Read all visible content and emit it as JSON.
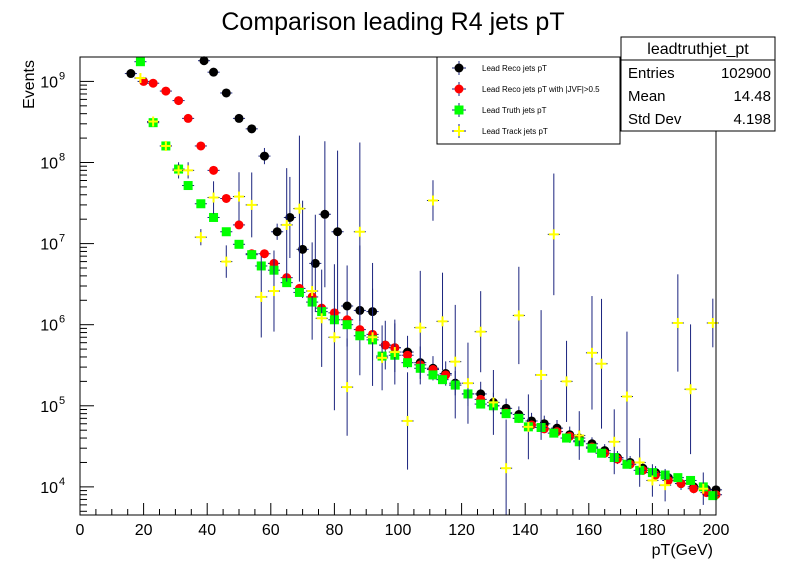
{
  "chart_data": {
    "type": "scatter",
    "title": "Comparison leading R4 jets pT",
    "xlabel": "pT(GeV)",
    "ylabel": "Events",
    "xlim": [
      0,
      200
    ],
    "ylim": [
      4500,
      2000000000
    ],
    "yscale": "log",
    "x_ticks": [
      0,
      20,
      40,
      60,
      80,
      100,
      120,
      140,
      160,
      180,
      200
    ],
    "y_ticks": [
      {
        "value": 10000,
        "mant": "10",
        "exp": "4"
      },
      {
        "value": 100000,
        "mant": "10",
        "exp": "5"
      },
      {
        "value": 1000000,
        "mant": "10",
        "exp": "6"
      },
      {
        "value": 10000000,
        "mant": "10",
        "exp": "7"
      },
      {
        "value": 100000000,
        "mant": "10",
        "exp": "8"
      },
      {
        "value": 1000000000,
        "mant": "10",
        "exp": "9"
      }
    ],
    "grid": false,
    "legend_position": "top-right",
    "series": [
      {
        "name": "Lead Reco jets pT",
        "color": "#000000",
        "marker": "circle",
        "points": [
          [
            16,
            1250000000,
            0
          ],
          [
            39,
            1800000000,
            0
          ],
          [
            42,
            1300000000,
            0
          ],
          [
            46,
            720000000,
            0
          ],
          [
            50,
            350000000,
            0
          ],
          [
            54,
            260000000,
            0
          ],
          [
            58,
            120000000,
            0.1
          ],
          [
            62,
            14000000,
            0.1
          ],
          [
            66,
            21000000,
            0.5
          ],
          [
            70,
            8500000,
            0.6
          ],
          [
            74,
            5700000,
            0.6
          ],
          [
            77,
            23000000,
            0.9
          ],
          [
            81,
            14000000,
            1.0
          ],
          [
            84,
            1700000,
            0.5
          ],
          [
            88,
            1500000,
            0.8
          ],
          [
            92,
            1450000,
            0.6
          ],
          [
            96,
            560000,
            0.3
          ],
          [
            99,
            520000,
            0.3
          ],
          [
            103,
            460000,
            0.2
          ],
          [
            107,
            340000,
            0.2
          ],
          [
            111,
            290000,
            0.15
          ],
          [
            115,
            250000,
            0.15
          ],
          [
            118,
            190000,
            0.15
          ],
          [
            122,
            140000,
            0.15
          ],
          [
            126,
            140000,
            0.15
          ],
          [
            130,
            110000,
            0.12
          ],
          [
            134,
            93000,
            0.12
          ],
          [
            138,
            78000,
            0.1
          ],
          [
            142,
            65000,
            0.1
          ],
          [
            146,
            60000,
            0.1
          ],
          [
            150,
            53000,
            0.1
          ],
          [
            154,
            44000,
            0.1
          ],
          [
            157,
            40000,
            0.1
          ],
          [
            161,
            34000,
            0.08
          ],
          [
            165,
            28000,
            0.08
          ],
          [
            169,
            23000,
            0.08
          ],
          [
            173,
            20000,
            0.08
          ],
          [
            177,
            17000,
            0.08
          ],
          [
            181,
            15000,
            0.08
          ],
          [
            185,
            13000,
            0.08
          ],
          [
            189,
            11000,
            0.08
          ],
          [
            193,
            10000,
            0.08
          ],
          [
            197,
            9300,
            0.08
          ],
          [
            200,
            9200,
            0.08
          ]
        ]
      },
      {
        "name": "Lead Reco jets pT with |JVF|>0.5",
        "color": "#ff0000",
        "marker": "circle",
        "points": [
          [
            20,
            1000000000,
            0
          ],
          [
            23,
            950000000,
            0
          ],
          [
            27,
            760000000,
            0
          ],
          [
            31,
            580000000,
            0
          ],
          [
            34,
            350000000,
            0
          ],
          [
            38,
            160000000,
            0
          ],
          [
            42,
            80000000,
            0
          ],
          [
            46,
            36000000,
            0
          ],
          [
            50,
            17000000,
            0
          ],
          [
            54,
            7500000,
            0
          ],
          [
            58,
            7500000,
            0
          ],
          [
            61,
            5700000,
            0
          ],
          [
            65,
            3800000,
            0
          ],
          [
            69,
            2800000,
            0
          ],
          [
            73,
            2200000,
            0
          ],
          [
            76,
            1600000,
            0
          ],
          [
            80,
            1400000,
            0
          ],
          [
            84,
            1150000,
            0
          ],
          [
            88,
            870000,
            0
          ],
          [
            92,
            760000,
            0
          ],
          [
            96,
            560000,
            0
          ],
          [
            99,
            520000,
            0
          ],
          [
            103,
            420000,
            0
          ],
          [
            107,
            320000,
            0
          ],
          [
            111,
            280000,
            0
          ],
          [
            115,
            240000,
            0
          ],
          [
            118,
            180000,
            0
          ],
          [
            122,
            140000,
            0
          ],
          [
            126,
            120000,
            0
          ],
          [
            130,
            100000,
            0
          ],
          [
            134,
            82000,
            0
          ],
          [
            138,
            70000,
            0
          ],
          [
            142,
            58000,
            0
          ],
          [
            146,
            52000,
            0
          ],
          [
            150,
            48000,
            0
          ],
          [
            154,
            42000,
            0
          ],
          [
            157,
            37000,
            0
          ],
          [
            161,
            31000,
            0
          ],
          [
            165,
            26000,
            0
          ],
          [
            169,
            22000,
            0
          ],
          [
            173,
            19000,
            0
          ],
          [
            177,
            16000,
            0
          ],
          [
            181,
            14000,
            0
          ],
          [
            185,
            12000,
            0
          ],
          [
            189,
            11000,
            0
          ],
          [
            193,
            9500,
            0
          ],
          [
            197,
            8500,
            0
          ],
          [
            200,
            8000,
            0
          ]
        ]
      },
      {
        "name": "Lead Truth jets pT",
        "color": "#00ff00",
        "marker": "square",
        "points": [
          [
            19,
            1750000000,
            0
          ],
          [
            23,
            310000000,
            0
          ],
          [
            27,
            160000000,
            0
          ],
          [
            31,
            83000000,
            0
          ],
          [
            34,
            52000000,
            0
          ],
          [
            38,
            31000000,
            0
          ],
          [
            42,
            21000000,
            0
          ],
          [
            46,
            14000000,
            0
          ],
          [
            50,
            9800000,
            0
          ],
          [
            54,
            7300000,
            0
          ],
          [
            57,
            5300000,
            0
          ],
          [
            61,
            4700000,
            0
          ],
          [
            65,
            3300000,
            0
          ],
          [
            69,
            2500000,
            0
          ],
          [
            73,
            1900000,
            0
          ],
          [
            76,
            1450000,
            0
          ],
          [
            80,
            1150000,
            0
          ],
          [
            84,
            1000000,
            0
          ],
          [
            88,
            730000,
            0
          ],
          [
            92,
            650000,
            0
          ],
          [
            95,
            410000,
            0
          ],
          [
            99,
            420000,
            0
          ],
          [
            103,
            340000,
            0
          ],
          [
            107,
            290000,
            0
          ],
          [
            111,
            240000,
            0
          ],
          [
            114,
            210000,
            0
          ],
          [
            118,
            180000,
            0
          ],
          [
            122,
            140000,
            0
          ],
          [
            126,
            105000,
            0
          ],
          [
            130,
            100000,
            0
          ],
          [
            134,
            80000,
            0
          ],
          [
            138,
            70000,
            0
          ],
          [
            141,
            55000,
            0
          ],
          [
            145,
            54000,
            0
          ],
          [
            149,
            46000,
            0
          ],
          [
            153,
            40000,
            0
          ],
          [
            157,
            36000,
            0
          ],
          [
            161,
            30000,
            0
          ],
          [
            164,
            26000,
            0
          ],
          [
            168,
            23000,
            0
          ],
          [
            172,
            19000,
            0
          ],
          [
            176,
            16000,
            0
          ],
          [
            180,
            15000,
            0
          ],
          [
            184,
            14000,
            0
          ],
          [
            188,
            13000,
            0
          ],
          [
            192,
            12000,
            0
          ],
          [
            196,
            10000,
            0
          ],
          [
            199,
            7800,
            0
          ]
        ]
      },
      {
        "name": "Lead Track jets pT",
        "color": "#ffff00",
        "marker": "cross",
        "points": [
          [
            19,
            1100000000,
            0
          ],
          [
            23,
            320000000,
            0
          ],
          [
            27,
            160000000,
            0
          ],
          [
            31,
            80000000,
            0.1
          ],
          [
            34,
            80000000,
            0.1
          ],
          [
            38,
            12000000,
            0.1
          ],
          [
            42,
            37000000,
            0.2
          ],
          [
            46,
            6000000,
            0.2
          ],
          [
            50,
            38000000,
            0.3
          ],
          [
            54,
            30000000,
            0.4
          ],
          [
            57,
            2200000,
            0.5
          ],
          [
            61,
            2600000,
            0.5
          ],
          [
            65,
            17000000,
            0.7
          ],
          [
            69,
            27000000,
            0.9
          ],
          [
            73,
            2600000,
            0.6
          ],
          [
            76,
            1200000,
            0.6
          ],
          [
            80,
            700000,
            0.9
          ],
          [
            84,
            170000,
            0.6
          ],
          [
            88,
            14000000,
            1.1
          ],
          [
            92,
            700000,
            0.6
          ],
          [
            95,
            390000,
            0.4
          ],
          [
            99,
            460000,
            0.4
          ],
          [
            103,
            65000,
            0.6
          ],
          [
            107,
            920000,
            0.7
          ],
          [
            111,
            34000000,
            0.25
          ],
          [
            114,
            1100000,
            0.6
          ],
          [
            118,
            350000,
            0.7
          ],
          [
            122,
            190000,
            0.5
          ],
          [
            126,
            820000,
            0.5
          ],
          [
            130,
            110000,
            0.4
          ],
          [
            134,
            17000,
            0.6
          ],
          [
            138,
            1300000,
            0.6
          ],
          [
            141,
            55000,
            0.4
          ],
          [
            145,
            240000,
            0.8
          ],
          [
            149,
            13000000,
            0.75
          ],
          [
            153,
            200000,
            0.5
          ],
          [
            157,
            43000,
            0.3
          ],
          [
            161,
            450000,
            0.7
          ],
          [
            164,
            330000,
            0.8
          ],
          [
            168,
            36000,
            0.4
          ],
          [
            172,
            130000,
            0.8
          ],
          [
            176,
            20000,
            0.3
          ],
          [
            180,
            12000,
            0.2
          ],
          [
            184,
            10500,
            0.2
          ],
          [
            188,
            1050000,
            0.6
          ],
          [
            192,
            160000,
            0.8
          ],
          [
            196,
            9500,
            0.2
          ],
          [
            199,
            1050000,
            0.3
          ]
        ]
      }
    ],
    "stats_box": {
      "title": "leadtruthjet_pt",
      "rows": [
        {
          "label": "Entries",
          "value": "102900"
        },
        {
          "label": "Mean",
          "value": "14.48"
        },
        {
          "label": "Std Dev",
          "value": "4.198"
        }
      ]
    }
  }
}
